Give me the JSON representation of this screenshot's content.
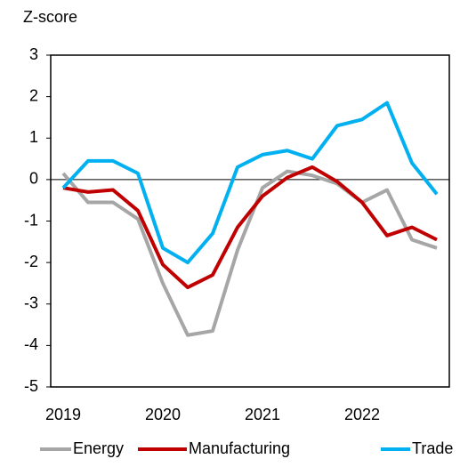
{
  "chart_data": {
    "type": "line",
    "y_label": "Z-score",
    "categories": [
      "2019",
      null,
      null,
      null,
      "2020",
      null,
      null,
      null,
      "2021",
      null,
      null,
      null,
      "2022",
      null,
      null,
      null
    ],
    "series": [
      {
        "name": "Energy",
        "color": "#a6a6a6",
        "values": [
          0.15,
          -0.55,
          -0.55,
          -0.95,
          -2.5,
          -3.75,
          -3.65,
          -1.7,
          -0.2,
          0.2,
          0.1,
          -0.1,
          -0.55,
          -0.25,
          -1.45,
          -1.65
        ]
      },
      {
        "name": "Manufacturing",
        "color": "#c00000",
        "values": [
          -0.2,
          -0.3,
          -0.25,
          -0.75,
          -2.05,
          -2.6,
          -2.3,
          -1.15,
          -0.4,
          0.05,
          0.3,
          -0.05,
          -0.55,
          -1.35,
          -1.15,
          -1.45
        ]
      },
      {
        "name": "Trade",
        "color": "#00b0f0",
        "values": [
          -0.2,
          0.45,
          0.45,
          0.15,
          -1.65,
          -2.0,
          -1.3,
          0.3,
          0.6,
          0.7,
          0.5,
          1.3,
          1.45,
          1.85,
          0.4,
          -0.35
        ]
      }
    ],
    "ylim": [
      -5,
      3
    ],
    "yticks": [
      -5,
      -4,
      -3,
      -2,
      -1,
      0,
      1,
      2,
      3
    ],
    "legend": "bottom"
  }
}
